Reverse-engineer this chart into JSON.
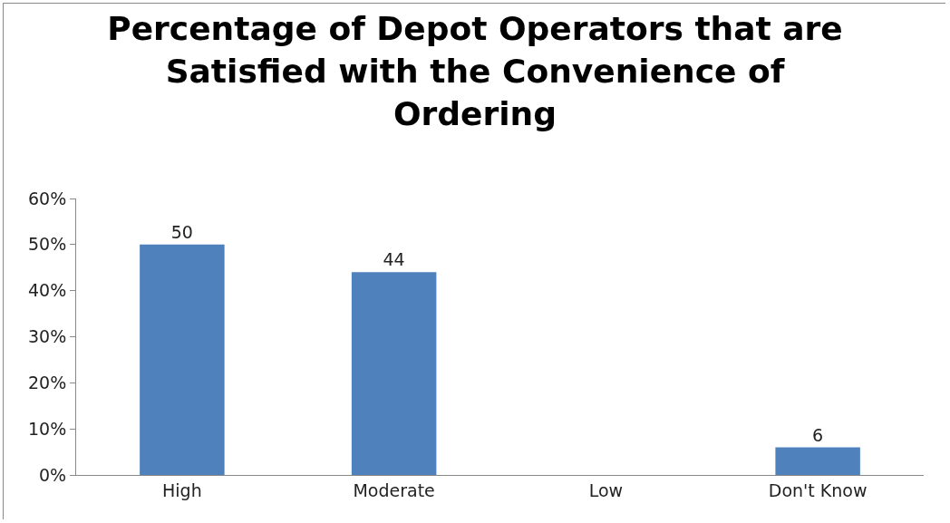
{
  "chart_data": {
    "type": "bar",
    "title": "Percentage of Depot Operators that are Satisfied with the Convenience of Ordering",
    "categories": [
      "High",
      "Moderate",
      "Low",
      "Don't Know"
    ],
    "values": [
      50,
      44,
      0,
      6
    ],
    "value_labels": [
      "50",
      "44",
      null,
      "6"
    ],
    "color": "#4f81bd",
    "ylim": [
      0,
      60
    ],
    "yticks": [
      {
        "value": 0,
        "label": "0%"
      },
      {
        "value": 10,
        "label": "10%"
      },
      {
        "value": 20,
        "label": "20%"
      },
      {
        "value": 30,
        "label": "30%"
      },
      {
        "value": 40,
        "label": "40%"
      },
      {
        "value": 50,
        "label": "50%"
      },
      {
        "value": 60,
        "label": "60%"
      }
    ],
    "grid": false,
    "legend": false
  }
}
